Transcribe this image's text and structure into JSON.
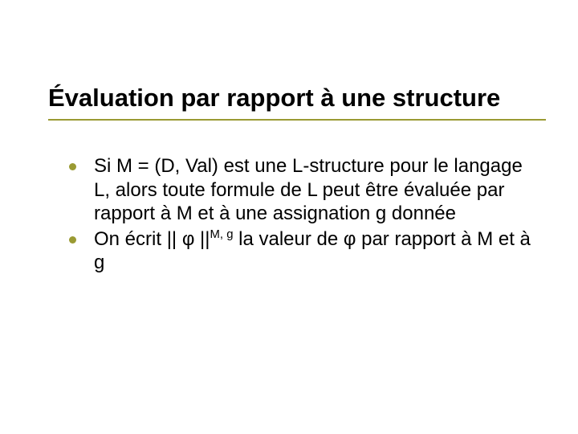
{
  "title": "Évaluation par rapport à une structure",
  "bullets": [
    {
      "html": "Si M = (D, Val) est une L-structure pour le langage L, alors toute formule de L peut être évaluée par rapport à M et à une assignation g donnée"
    },
    {
      "html": "On écrit || φ ||<sup>M, g</sup> la valeur de φ par rapport à M et à g"
    }
  ],
  "style": {
    "accent_color": "#9a9a33",
    "title_fontsize": 31,
    "body_fontsize": 24,
    "bullet_dot_size": 9,
    "background_color": "#ffffff",
    "text_color": "#000000"
  }
}
